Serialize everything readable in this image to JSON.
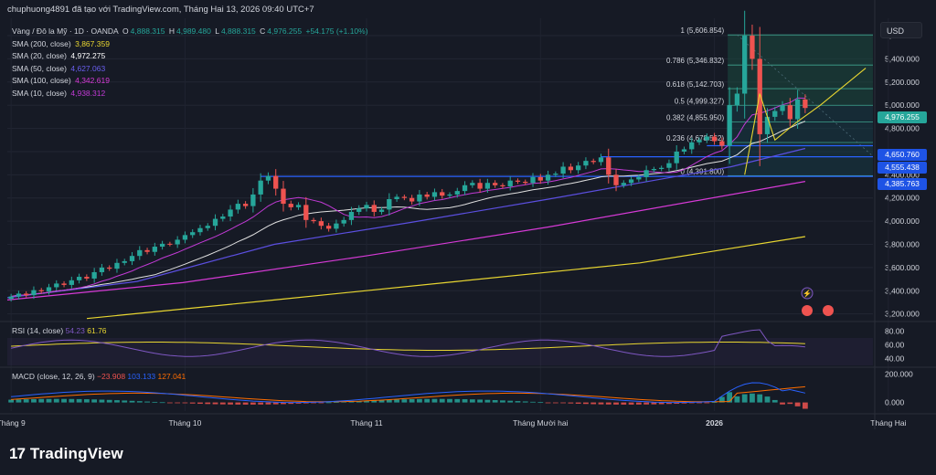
{
  "header": {
    "text": "chuphuong4891 đã tạo với TradingView.com, Tháng Hai 13, 2026 09:40 UTC+7"
  },
  "symbol": {
    "title": "Vàng / Đô la Mỹ · 1D · OANDA",
    "ohlc": {
      "o_label": "O",
      "o": "4,888.315",
      "h_label": "H",
      "h": "4,989.480",
      "l_label": "L",
      "l": "4,888.315",
      "c_label": "C",
      "c": "4,976.255",
      "change": "+54.175 (+1.10%)"
    }
  },
  "indicators": [
    {
      "label": "SMA (200, close)",
      "value": "3,867.359",
      "color": "#e8d631"
    },
    {
      "label": "SMA (20, close)",
      "value": "4,972.275",
      "color": "#ffffff"
    },
    {
      "label": "SMA (50, close)",
      "value": "4,627.063",
      "color": "#5b4fe0"
    },
    {
      "label": "SMA (100, close)",
      "value": "4,342.619",
      "color": "#d63ad6"
    },
    {
      "label": "SMA (10, close)",
      "value": "4,938.312",
      "color": "#c23ad6"
    }
  ],
  "rsi": {
    "label": "RSI (14, close)",
    "v1": "54.23",
    "v2": "61.76",
    "color1": "#7e57c2",
    "color2": "#e8d631"
  },
  "macd": {
    "label": "MACD (close, 12, 26, 9)",
    "v1": "−23.908",
    "v2": "103.133",
    "v3": "127.041",
    "color1": "#ef5350",
    "color2": "#2962ff",
    "color3": "#ff6d00"
  },
  "currency_button": "USD",
  "brand": "TradingView",
  "price_tags": [
    {
      "value": "4,976.255",
      "color": "#26a69a"
    },
    {
      "value": "4,650.760",
      "color": "#1e53e5"
    },
    {
      "value": "4,555.438",
      "color": "#1e53e5"
    },
    {
      "value": "4,385.763",
      "color": "#1e53e5"
    }
  ],
  "chart_data": {
    "type": "candlestick",
    "price_axis": {
      "ticks": [
        3200,
        3400,
        3600,
        3800,
        4000,
        4200,
        4400,
        4600,
        4800,
        5000,
        5200,
        5400,
        5600
      ],
      "tick_labels": [
        "3,200.000",
        "3,400.000",
        "3,600.000",
        "3,800.000",
        "4,000.000",
        "4,200.000",
        "4,400.000",
        "4,600.000",
        "4,800.000",
        "5,000.000",
        "5,200.000",
        "5,400.000",
        "5,600.000"
      ],
      "range": [
        3150,
        5750
      ]
    },
    "rsi_axis": {
      "ticks": [
        40,
        60,
        80
      ],
      "tick_labels": [
        "40.00",
        "60.00",
        "80.00"
      ],
      "range": [
        30,
        90
      ]
    },
    "macd_axis": {
      "ticks": [
        0,
        200
      ],
      "tick_labels": [
        "0.000",
        "200.000"
      ],
      "range": [
        -60,
        240
      ]
    },
    "time_axis": {
      "labels": [
        "Tháng 9",
        "Tháng 10",
        "Tháng 11",
        "Tháng Mười hai",
        "2026",
        "Tháng Hai"
      ],
      "bar_index": [
        0,
        23,
        47,
        70,
        93,
        116
      ]
    },
    "fib_levels": [
      {
        "ratio": "1",
        "price": 5606.854,
        "label": "1 (5,606.854)"
      },
      {
        "ratio": "0.786",
        "price": 5346.832,
        "label": "0.786 (5,346.832)"
      },
      {
        "ratio": "0.618",
        "price": 5142.703,
        "label": "0.618 (5,142.703)"
      },
      {
        "ratio": "0.5",
        "price": 4999.327,
        "label": "0.5 (4,999.327)"
      },
      {
        "ratio": "0.382",
        "price": 4855.95,
        "label": "0.382 (4,855.950)"
      },
      {
        "ratio": "0.236",
        "price": 4678.552,
        "label": "0.236 (4,678.552)"
      },
      {
        "ratio": "0",
        "price": 4391.8,
        "label": "0 (4,391.800)"
      }
    ],
    "horizontal_levels": [
      4385.763,
      4555.438,
      4650.76
    ],
    "closes": [
      3350,
      3375,
      3362,
      3405,
      3395,
      3430,
      3462,
      3450,
      3490,
      3520,
      3505,
      3560,
      3600,
      3590,
      3640,
      3655,
      3700,
      3750,
      3735,
      3780,
      3805,
      3800,
      3840,
      3880,
      3905,
      3940,
      3960,
      4020,
      4040,
      4100,
      4150,
      4130,
      4230,
      4350,
      4390,
      4280,
      4150,
      4120,
      4140,
      4010,
      4000,
      3960,
      3935,
      3980,
      4010,
      4080,
      4110,
      4140,
      4080,
      4100,
      4190,
      4210,
      4200,
      4170,
      4230,
      4210,
      4250,
      4220,
      4230,
      4260,
      4310,
      4330,
      4280,
      4330,
      4310,
      4300,
      4350,
      4340,
      4330,
      4380,
      4350,
      4400,
      4410,
      4470,
      4440,
      4480,
      4520,
      4510,
      4550,
      4400,
      4310,
      4330,
      4360,
      4380,
      4440,
      4450,
      4460,
      4500,
      4600,
      4620,
      4680,
      4700,
      4730,
      4690,
      4650,
      5000,
      5100,
      5600,
      5400,
      4750,
      4900,
      4950,
      5000,
      4880,
      5050,
      4976.255
    ],
    "sma200_end": 3867.359,
    "sma20_end": 4972.275,
    "sma50_end": 4627.063,
    "sma100_end": 4342.619,
    "sma10_end": 4938.312,
    "macd_values": {
      "macd": -23.908,
      "signal": 103.133,
      "histogram": 127.041
    }
  }
}
